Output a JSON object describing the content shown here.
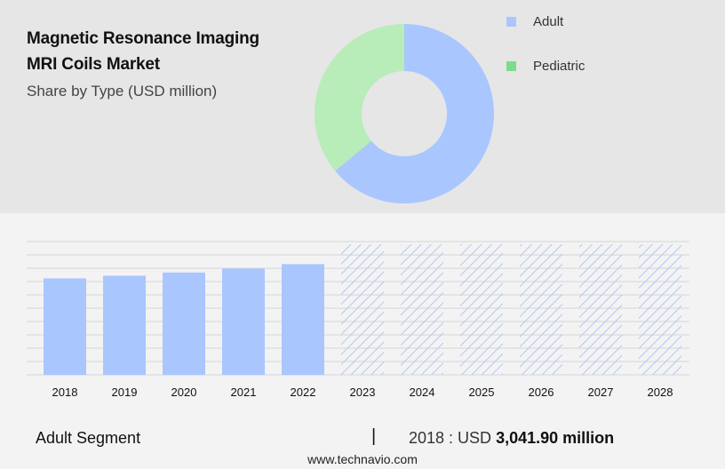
{
  "header": {
    "title_line1": "Magnetic Resonance Imaging",
    "title_line2": "MRI Coils Market",
    "subtitle": "Share by Type (USD million)"
  },
  "colors": {
    "adult": "#a9c6ff",
    "pediatric": "#b8ecb9",
    "pediatric_legend": "#7ddc8c",
    "grid": "#d6d6d6",
    "forecast_hatch": "#b4c8f2"
  },
  "legend": [
    {
      "label": "Adult",
      "color": "#a9c6ff"
    },
    {
      "label": "Pediatric",
      "color": "#7ddc8c"
    }
  ],
  "chart_data": [
    {
      "type": "pie",
      "donut": true,
      "labels": [
        "Adult",
        "Pediatric"
      ],
      "values": [
        64,
        36
      ]
    },
    {
      "type": "bar",
      "categories": [
        "2018",
        "2019",
        "2020",
        "2021",
        "2022",
        "2023",
        "2024",
        "2025",
        "2026",
        "2027",
        "2028"
      ],
      "values": [
        3041.9,
        3125,
        3225,
        3350,
        3490,
        null,
        null,
        null,
        null,
        null,
        null
      ],
      "forecast_categories": [
        "2023",
        "2024",
        "2025",
        "2026",
        "2027",
        "2028"
      ],
      "ylim": [
        0,
        4200
      ],
      "grid": true
    }
  ],
  "footer": {
    "segment_label": "Adult Segment",
    "separator": "|",
    "value_prefix": "2018 : USD ",
    "value_strong": "3,041.90 million",
    "source": "www.technavio.com"
  }
}
